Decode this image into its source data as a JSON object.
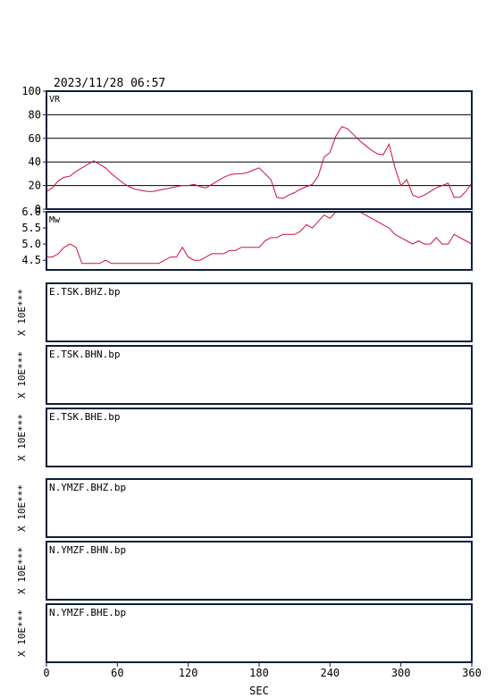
{
  "header": {
    "timestamp": "2023/11/28 06:57"
  },
  "colors": {
    "series": "#d0103a",
    "frame": "#0c1f3a",
    "grid": "#000000",
    "text": "#000000"
  },
  "chart_data": [
    {
      "type": "line",
      "panel_label": "VR",
      "xlim": [
        0,
        360
      ],
      "ylim": [
        0,
        100
      ],
      "yticks": [
        "0",
        "20",
        "40",
        "60",
        "80",
        "100"
      ],
      "grid": true,
      "series": [
        {
          "x": [
            0,
            5,
            10,
            15,
            20,
            25,
            30,
            35,
            40,
            45,
            50,
            55,
            60,
            65,
            70,
            75,
            80,
            85,
            90,
            95,
            100,
            105,
            110,
            115,
            120,
            125,
            130,
            135,
            140,
            145,
            150,
            155,
            160,
            165,
            170,
            175,
            180,
            185,
            190,
            195,
            200,
            205,
            210,
            215,
            220,
            225,
            230,
            235,
            240,
            245,
            250,
            255,
            260,
            265,
            270,
            275,
            280,
            285,
            290,
            295,
            300,
            305,
            310,
            315,
            320,
            325,
            330,
            335,
            340,
            345,
            350,
            355,
            360
          ],
          "y": [
            15,
            18,
            24,
            27,
            28,
            32,
            35,
            38,
            41,
            38,
            35,
            30,
            26,
            22,
            19,
            17,
            16,
            15,
            15,
            16,
            17,
            18,
            19,
            20,
            20,
            21,
            19,
            18,
            21,
            24,
            27,
            29,
            30,
            30,
            31,
            33,
            35,
            30,
            25,
            10,
            9,
            12,
            14,
            17,
            19,
            21,
            28,
            44,
            48,
            62,
            70,
            68,
            63,
            58,
            54,
            50,
            47,
            46,
            55,
            35,
            20,
            25,
            12,
            10,
            12,
            15,
            18,
            20,
            22,
            10,
            10,
            15,
            22
          ]
        }
      ]
    },
    {
      "type": "line",
      "panel_label": "Mw",
      "xlim": [
        0,
        360
      ],
      "ylim": [
        4.2,
        6.0
      ],
      "yticks": [
        "4.5",
        "5.0",
        "5.5",
        "6.0"
      ],
      "grid": false,
      "series": [
        {
          "x": [
            0,
            5,
            10,
            15,
            20,
            25,
            30,
            35,
            40,
            45,
            50,
            55,
            60,
            65,
            70,
            75,
            80,
            85,
            90,
            95,
            100,
            105,
            110,
            115,
            120,
            125,
            130,
            135,
            140,
            145,
            150,
            155,
            160,
            165,
            170,
            175,
            180,
            185,
            190,
            195,
            200,
            205,
            210,
            215,
            220,
            225,
            230,
            235,
            240,
            245,
            250,
            255,
            260,
            265,
            270,
            275,
            280,
            285,
            290,
            295,
            300,
            305,
            310,
            315,
            320,
            325,
            330,
            335,
            340,
            345,
            350,
            355,
            360
          ],
          "y": [
            4.6,
            4.6,
            4.7,
            4.9,
            5.0,
            4.9,
            4.4,
            4.4,
            4.4,
            4.4,
            4.5,
            4.4,
            4.4,
            4.4,
            4.4,
            4.4,
            4.4,
            4.4,
            4.4,
            4.4,
            4.5,
            4.6,
            4.6,
            4.9,
            4.6,
            4.5,
            4.5,
            4.6,
            4.7,
            4.7,
            4.7,
            4.8,
            4.8,
            4.9,
            4.9,
            4.9,
            4.9,
            5.1,
            5.2,
            5.2,
            5.3,
            5.3,
            5.3,
            5.4,
            5.6,
            5.5,
            5.7,
            5.9,
            5.8,
            6.0,
            6.0,
            6.0,
            6.0,
            6.0,
            5.9,
            5.8,
            5.7,
            5.6,
            5.5,
            5.3,
            5.2,
            5.1,
            5.0,
            5.1,
            5.0,
            5.0,
            5.2,
            5.0,
            5.0,
            5.3,
            5.2,
            5.1,
            5.0
          ]
        }
      ]
    }
  ],
  "traces": [
    {
      "label": "E.TSK.BHZ.bp",
      "scale": "X 10E***"
    },
    {
      "label": "E.TSK.BHN.bp",
      "scale": "X 10E***"
    },
    {
      "label": "E.TSK.BHE.bp",
      "scale": "X 10E***"
    },
    {
      "label": "N.YMZF.BHZ.bp",
      "scale": "X 10E***"
    },
    {
      "label": "N.YMZF.BHN.bp",
      "scale": "X 10E***"
    },
    {
      "label": "N.YMZF.BHE.bp",
      "scale": "X 10E***"
    }
  ],
  "x_axis": {
    "label": "SEC",
    "ticks": [
      "0",
      "60",
      "120",
      "180",
      "240",
      "300",
      "360"
    ],
    "range": [
      0,
      360
    ]
  }
}
